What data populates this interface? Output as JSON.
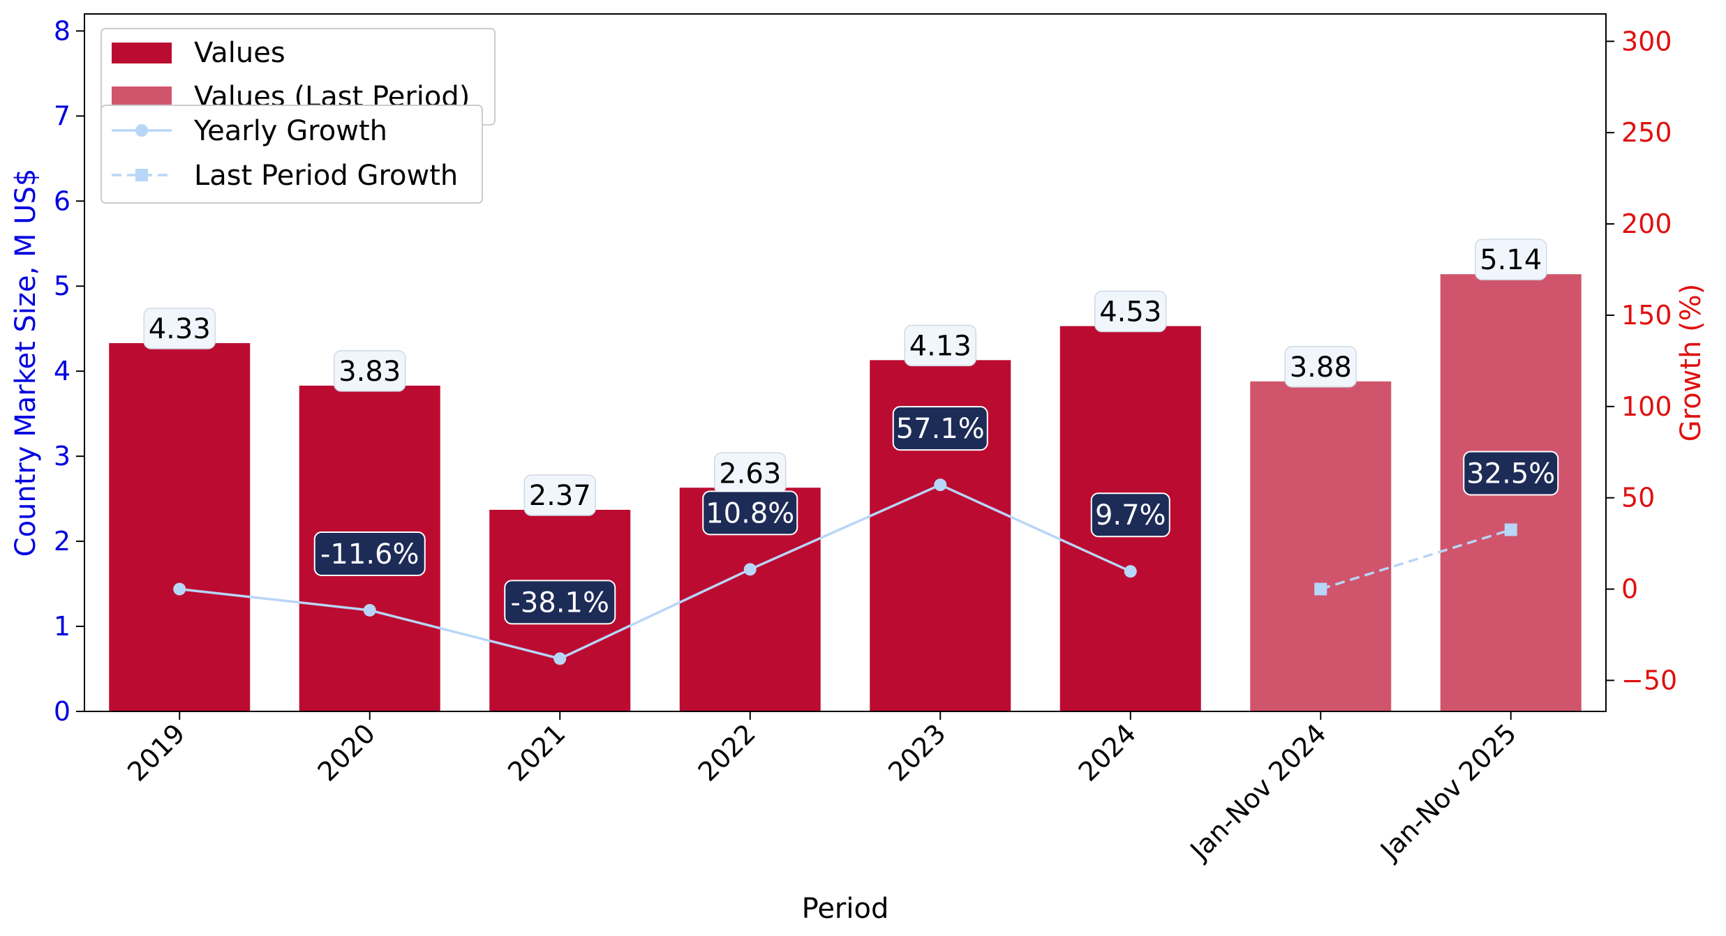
{
  "chart_data": {
    "type": "bar",
    "title": "",
    "xlabel": "Period",
    "ylabel_left": "Country Market Size, M US$",
    "ylabel_right": "Growth (%)",
    "categories": [
      "2019",
      "2020",
      "2021",
      "2022",
      "2023",
      "2024",
      "Jan-Nov 2024",
      "Jan-Nov 2025"
    ],
    "ylim_left": [
      0,
      8.2
    ],
    "ylim_right": [
      -67,
      315
    ],
    "yticks_left": [
      "0",
      "1",
      "2",
      "3",
      "4",
      "5",
      "6",
      "7",
      "8"
    ],
    "yticks_right": [
      "−50",
      "0",
      "50",
      "100",
      "150",
      "200",
      "250",
      "300"
    ],
    "series": [
      {
        "name": "Values",
        "kind": "bar",
        "color": "#bc0b31",
        "values": [
          4.33,
          3.83,
          2.37,
          2.63,
          4.13,
          4.53,
          null,
          null
        ],
        "labels": [
          "4.33",
          "3.83",
          "2.37",
          "2.63",
          "4.13",
          "4.53",
          "",
          ""
        ]
      },
      {
        "name": "Values (Last Period)",
        "kind": "bar",
        "color": "#d0556c",
        "values": [
          null,
          null,
          null,
          null,
          null,
          null,
          3.88,
          5.14
        ],
        "labels": [
          "",
          "",
          "",
          "",
          "",
          "",
          "3.88",
          "5.14"
        ]
      },
      {
        "name": "Yearly Growth",
        "kind": "line",
        "axis": "right",
        "color": "#b8d6f7",
        "values": [
          0,
          -11.6,
          -38.1,
          10.8,
          57.1,
          9.7,
          null,
          null
        ],
        "labels": [
          "",
          "-11.6%",
          "-38.1%",
          "10.8%",
          "57.1%",
          "9.7%",
          "",
          ""
        ]
      },
      {
        "name": "Last Period Growth",
        "kind": "line",
        "axis": "right",
        "color": "#b8d6f7",
        "dashed": true,
        "values": [
          null,
          null,
          null,
          null,
          null,
          null,
          0,
          32.5
        ],
        "labels": [
          "",
          "",
          "",
          "",
          "",
          "",
          "",
          "32.5%"
        ]
      }
    ],
    "legend_placement": "top-left",
    "grid": false
  }
}
